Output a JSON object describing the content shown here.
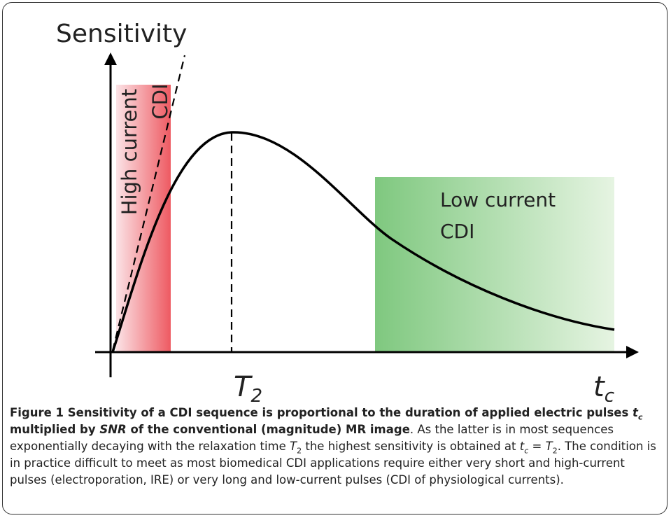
{
  "figure": {
    "y_axis_label": "Sensitivity",
    "x_labels": [
      {
        "main": "T",
        "sub": "2"
      },
      {
        "main": "t",
        "sub": "c"
      }
    ],
    "regions": [
      {
        "lines": [
          "High current",
          "CDI"
        ]
      },
      {
        "lines": [
          "Low current",
          "CDI"
        ]
      }
    ],
    "caption": {
      "runs": [
        {
          "text": "Figure 1 Sensitivity of a CDI sequence is proportional to the duration of applied electric pulses ",
          "bold": true
        },
        {
          "text": "t",
          "bold": true,
          "italic": true
        },
        {
          "text": "c",
          "bold": true,
          "italic": true,
          "sub": true
        },
        {
          "text": " multiplied by ",
          "bold": true
        },
        {
          "text": "SNR",
          "bold": true,
          "italic": true
        },
        {
          "text": " of the conventional (magnitude) MR image",
          "bold": true
        },
        {
          "text": ". As the latter is in most sequences exponentially decaying with the relaxation time "
        },
        {
          "text": "T",
          "italic": true
        },
        {
          "text": "2",
          "sub": true
        },
        {
          "text": " the highest sensitivity is obtained at "
        },
        {
          "text": "t",
          "italic": true
        },
        {
          "text": "c",
          "italic": true,
          "sub": true
        },
        {
          "text": " = "
        },
        {
          "text": "T",
          "italic": true
        },
        {
          "text": "2",
          "sub": true
        },
        {
          "text": ". The condition is in practice difficult to meet as most biomedical CDI applications require either very short and high-current pulses (electroporation, IRE) or very long and low-current pulses (CDI of physiological currents)."
        }
      ]
    }
  }
}
